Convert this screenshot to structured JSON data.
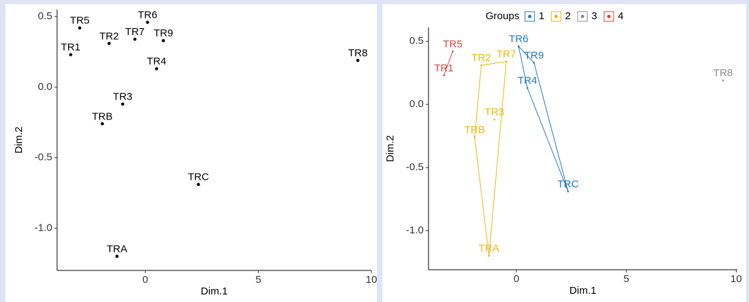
{
  "chart_data": [
    {
      "type": "scatter",
      "x_label": "Dim.1",
      "y_label": "Dim.2",
      "xlim": [
        -3.9,
        10
      ],
      "ylim": [
        -1.3,
        0.55
      ],
      "xticks": [
        0,
        5,
        10
      ],
      "yticks": [
        0.5,
        {
          "value": 0,
          "label": "0.0"
        },
        -0.5,
        {
          "value": -1,
          "label": "-1.0"
        }
      ],
      "series": [
        {
          "color": "#000000",
          "labels": [
            "TR5",
            "TR6",
            "TR7",
            "TR2",
            "TR9",
            "TR1",
            "TR4",
            "TR8",
            "TR3",
            "TRB",
            "TRC",
            "TRA"
          ],
          "x": [
            -2.9,
            0.1,
            -0.46,
            -1.6,
            0.8,
            -3.3,
            0.5,
            9.4,
            -1.0,
            -1.9,
            2.35,
            -1.25
          ],
          "y": [
            0.42,
            0.46,
            0.34,
            0.31,
            0.33,
            0.23,
            0.13,
            0.19,
            -0.12,
            -0.26,
            -0.69,
            -1.2
          ]
        }
      ]
    },
    {
      "type": "scatter",
      "x_label": "Dim.1",
      "y_label": "Dim.2",
      "legend_title": "Groups",
      "xlim": [
        -4.0,
        10.05
      ],
      "ylim": [
        -1.31,
        0.61
      ],
      "xticks": [
        0,
        5,
        10
      ],
      "yticks": [
        0.5,
        {
          "value": 0,
          "label": "0.0"
        },
        -0.5,
        {
          "value": -1,
          "label": "-1.0"
        }
      ],
      "series": [
        {
          "name": "1",
          "color": "#1f78c1",
          "labels": [
            "TR6",
            "TR9",
            "TR4",
            "TRC"
          ],
          "x": [
            0.1,
            0.8,
            0.5,
            2.35
          ],
          "y": [
            0.46,
            0.33,
            0.13,
            -0.69
          ]
        },
        {
          "name": "2",
          "color": "#e8b90c",
          "labels": [
            "TR7",
            "TR2",
            "TR3",
            "TRB",
            "TRA"
          ],
          "x": [
            -0.46,
            -1.6,
            -1.0,
            -1.9,
            -1.25
          ],
          "y": [
            0.34,
            0.31,
            -0.12,
            -0.26,
            -1.2
          ]
        },
        {
          "name": "3",
          "color": "#8c8c8c",
          "labels": [
            "TR8"
          ],
          "x": [
            9.4
          ],
          "y": [
            0.19
          ]
        },
        {
          "name": "4",
          "color": "#d9463e",
          "labels": [
            "TR5",
            "TR1"
          ],
          "x": [
            -2.9,
            -3.3
          ],
          "y": [
            0.42,
            0.23
          ]
        }
      ]
    }
  ]
}
